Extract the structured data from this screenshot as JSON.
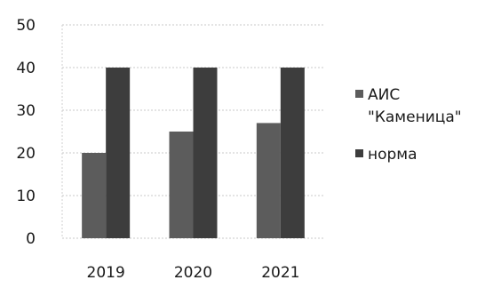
{
  "chart_data": {
    "type": "bar",
    "categories": [
      "2019",
      "2020",
      "2021"
    ],
    "series": [
      {
        "name": "АИС\n\"Каменица\"",
        "values": [
          20,
          25,
          27
        ],
        "color": "#5c5c5c"
      },
      {
        "name": "норма",
        "values": [
          40,
          40,
          40
        ],
        "color": "#3d3d3d"
      }
    ],
    "ylim": [
      0,
      50
    ],
    "yticks": [
      "0",
      "10",
      "20",
      "30",
      "40",
      "50"
    ],
    "xlabel": "",
    "ylabel": "",
    "title": "",
    "grid": true,
    "legend_position": "right"
  }
}
